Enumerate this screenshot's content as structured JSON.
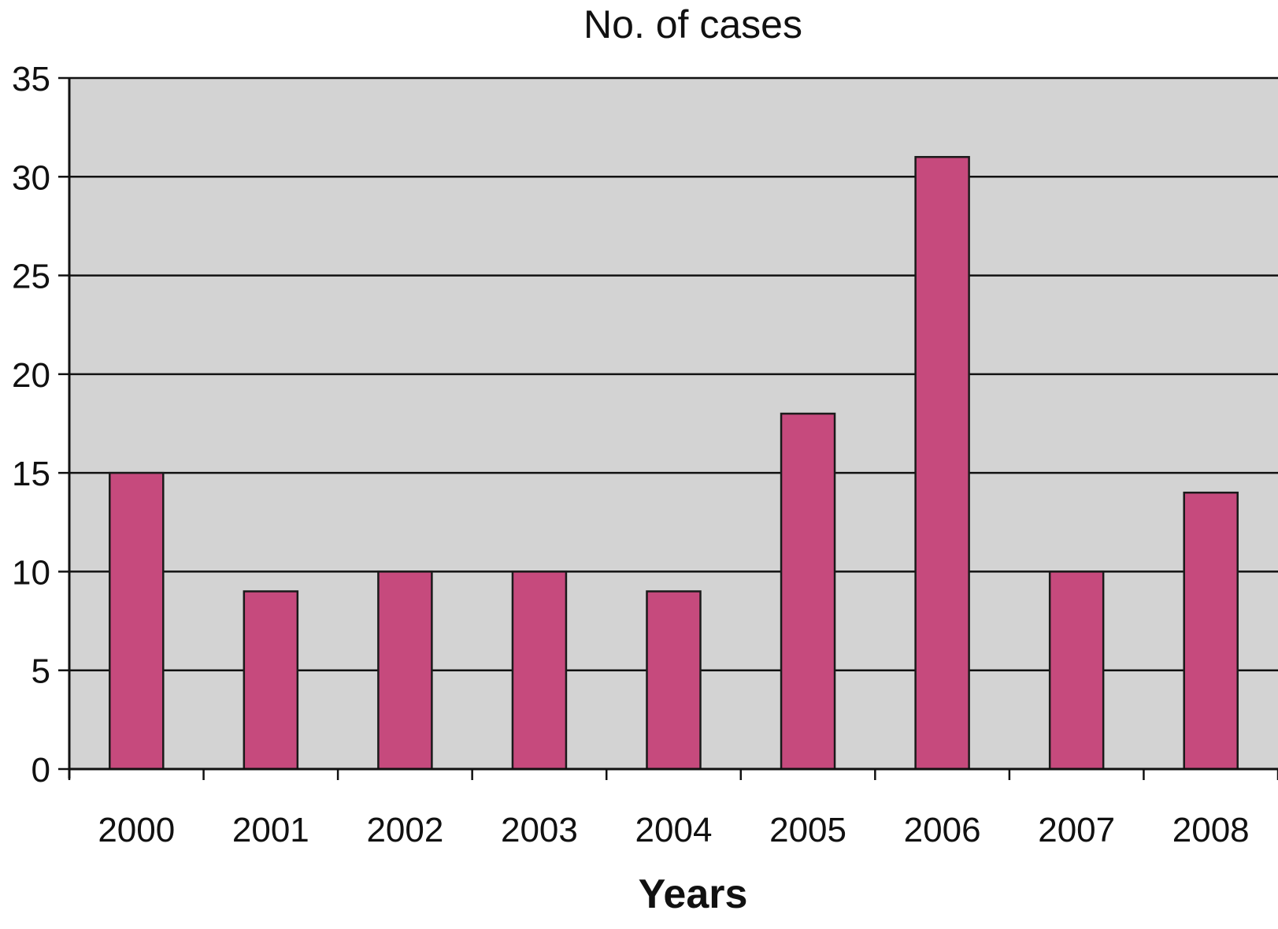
{
  "chart_data": {
    "type": "bar",
    "title": "No. of cases",
    "xlabel": "Years",
    "ylabel": "",
    "categories": [
      "2000",
      "2001",
      "2002",
      "2003",
      "2004",
      "2005",
      "2006",
      "2007",
      "2008"
    ],
    "values": [
      15,
      9,
      10,
      10,
      9,
      18,
      31,
      10,
      14
    ],
    "ylim": [
      0,
      35
    ],
    "yticks": [
      0,
      5,
      10,
      15,
      20,
      25,
      30,
      35
    ],
    "grid": true,
    "legend": "none",
    "colors": {
      "bar": "#c64a7d",
      "bar_edge": "#1a1a1a",
      "plot_background": "#d3d3d3",
      "gridline": "#111111",
      "text": "#111111"
    }
  }
}
